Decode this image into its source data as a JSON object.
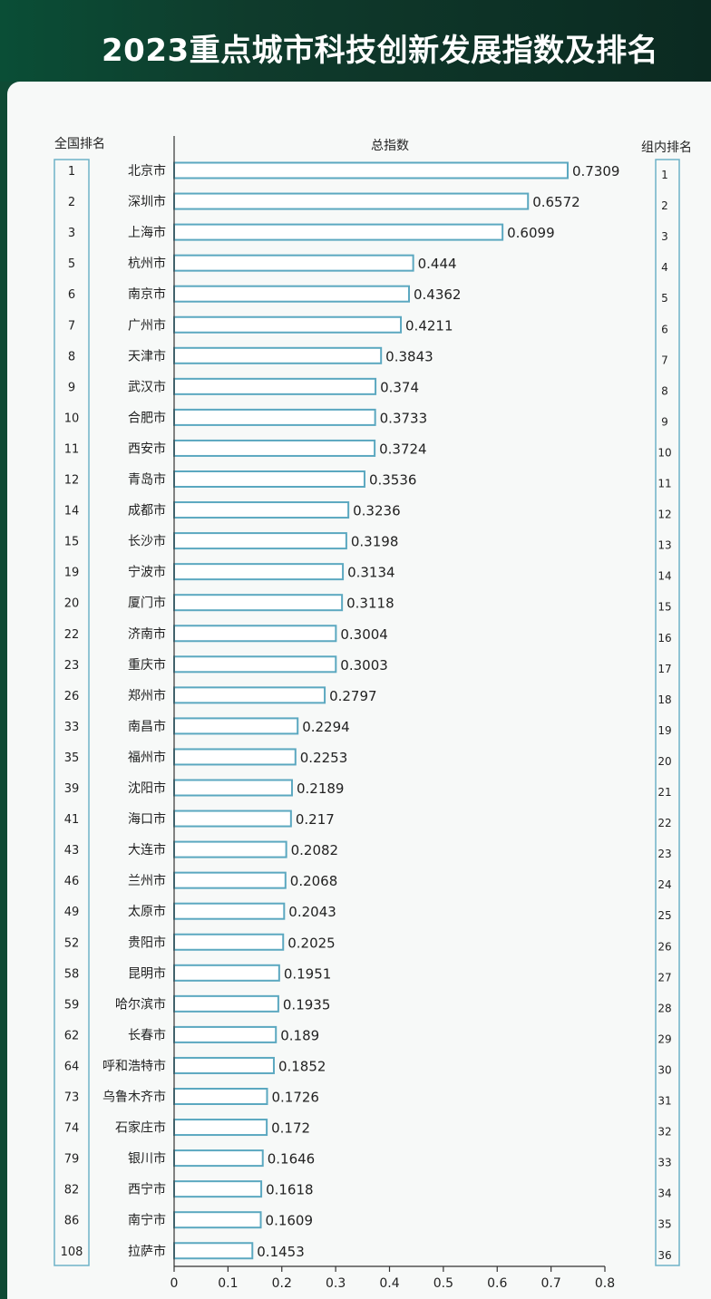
{
  "header": {
    "title": "2023重点城市科技创新发展指数及排名"
  },
  "columns": {
    "national_rank_label": "全国排名",
    "index_label": "总指数",
    "group_rank_label": "组内排名"
  },
  "colors": {
    "bar_stroke": "#5ba8c0",
    "bar_fill": "#ffffff",
    "header_bg": "#0f3b2c",
    "card_bg": "#f7f9f8"
  },
  "chart_data": {
    "type": "bar",
    "orientation": "horizontal",
    "title": "2023重点城市科技创新发展指数及排名",
    "xlabel": "总指数",
    "xlim": [
      0,
      0.8
    ],
    "xticks": [
      0,
      0.1,
      0.2,
      0.3,
      0.4,
      0.5,
      0.6,
      0.7,
      0.8
    ],
    "categories": [
      "北京市",
      "深圳市",
      "上海市",
      "杭州市",
      "南京市",
      "广州市",
      "天津市",
      "武汉市",
      "合肥市",
      "西安市",
      "青岛市",
      "成都市",
      "长沙市",
      "宁波市",
      "厦门市",
      "济南市",
      "重庆市",
      "郑州市",
      "南昌市",
      "福州市",
      "沈阳市",
      "海口市",
      "大连市",
      "兰州市",
      "太原市",
      "贵阳市",
      "昆明市",
      "哈尔滨市",
      "长春市",
      "呼和浩特市",
      "乌鲁木齐市",
      "石家庄市",
      "银川市",
      "西宁市",
      "南宁市",
      "拉萨市"
    ],
    "values": [
      0.7309,
      0.6572,
      0.6099,
      0.444,
      0.4362,
      0.4211,
      0.3843,
      0.374,
      0.3733,
      0.3724,
      0.3536,
      0.3236,
      0.3198,
      0.3134,
      0.3118,
      0.3004,
      0.3003,
      0.2797,
      0.2294,
      0.2253,
      0.2189,
      0.217,
      0.2082,
      0.2068,
      0.2043,
      0.2025,
      0.1951,
      0.1935,
      0.189,
      0.1852,
      0.1726,
      0.172,
      0.1646,
      0.1618,
      0.1609,
      0.1453
    ],
    "value_labels": [
      "0.7309",
      "0.6572",
      "0.6099",
      "0.444",
      "0.4362",
      "0.4211",
      "0.3843",
      "0.374",
      "0.3733",
      "0.3724",
      "0.3536",
      "0.3236",
      "0.3198",
      "0.3134",
      "0.3118",
      "0.3004",
      "0.3003",
      "0.2797",
      "0.2294",
      "0.2253",
      "0.2189",
      "0.217",
      "0.2082",
      "0.2068",
      "0.2043",
      "0.2025",
      "0.1951",
      "0.1935",
      "0.189",
      "0.1852",
      "0.1726",
      "0.172",
      "0.1646",
      "0.1618",
      "0.1609",
      "0.1453"
    ],
    "national_rank": [
      "1",
      "2",
      "3",
      "5",
      "6",
      "7",
      "8",
      "9",
      "10",
      "11",
      "12",
      "14",
      "15",
      "19",
      "20",
      "22",
      "23",
      "26",
      "33",
      "35",
      "39",
      "41",
      "43",
      "46",
      "49",
      "52",
      "58",
      "59",
      "62",
      "64",
      "73",
      "74",
      "79",
      "82",
      "86",
      "108"
    ],
    "group_rank": [
      "1",
      "2",
      "3",
      "4",
      "5",
      "6",
      "7",
      "8",
      "9",
      "10",
      "11",
      "12",
      "13",
      "14",
      "15",
      "16",
      "17",
      "18",
      "19",
      "20",
      "21",
      "22",
      "23",
      "24",
      "25",
      "26",
      "27",
      "28",
      "29",
      "30",
      "31",
      "32",
      "33",
      "34",
      "35",
      "36"
    ]
  }
}
